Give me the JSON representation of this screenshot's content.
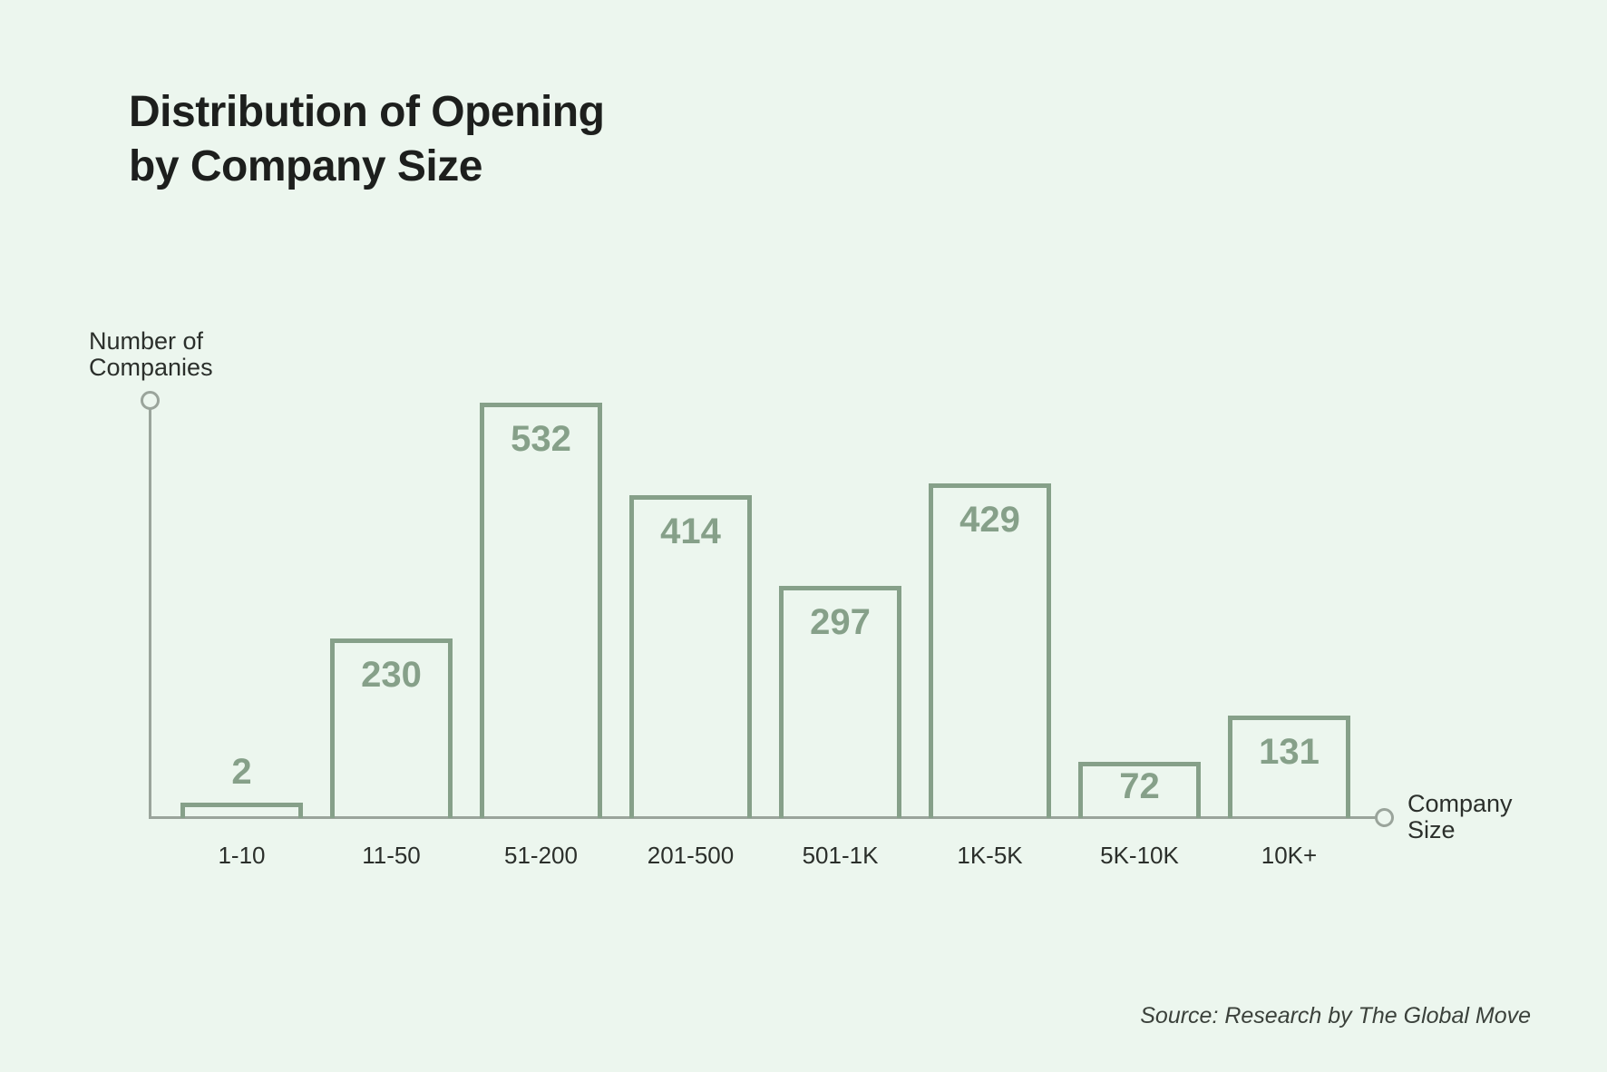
{
  "title": {
    "line1": "Distribution of Opening",
    "line2": "by Company Size"
  },
  "y_axis": {
    "label_line1": "Number of",
    "label_line2": "Companies"
  },
  "x_axis": {
    "label_line1": "Company",
    "label_line2": "Size"
  },
  "source": {
    "text": "Source: Research by The Global Move"
  },
  "colors": {
    "background": "#ecf6ee",
    "accent": "#86a089",
    "axis": "#9aa49b",
    "title_text": "#1d1f1d",
    "label_text": "#2b2f2b",
    "source_text": "#3b413b"
  },
  "chart_data": {
    "type": "bar",
    "title": "Distribution of Opening by Company Size",
    "categories": [
      "1-10",
      "11-50",
      "51-200",
      "201-500",
      "501-1K",
      "1K-5K",
      "5K-10K",
      "10K+"
    ],
    "values": [
      2,
      230,
      532,
      414,
      297,
      429,
      72,
      131
    ],
    "xlabel": "Company Size",
    "ylabel": "Number of Companies",
    "bar_style": "outlined",
    "value_labels": "shown",
    "legend": "none",
    "grid": false,
    "ylim": [
      0,
      532
    ]
  }
}
